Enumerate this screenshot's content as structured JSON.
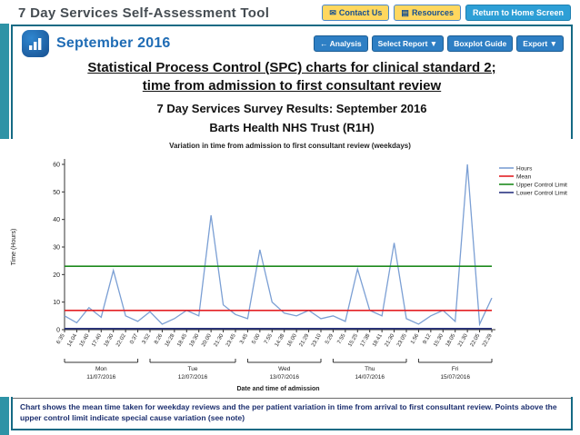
{
  "top_bar": {
    "title": "7 Day Services Self-Assessment Tool",
    "contact_icon": "✉",
    "contact_label": "Contact Us",
    "resources_icon": "▤",
    "resources_label": "Resources",
    "home_label": "Return to Home Screen"
  },
  "panel_header": {
    "month_title": "September 2016",
    "analysis_label": "← Analysis",
    "select_report_label": "Select Report ▼",
    "boxplot_label": "Boxplot Guide",
    "export_label": "Export ▼"
  },
  "titles": {
    "main_line1": "Statistical Process Control (SPC) charts for clinical standard 2;",
    "main_line2": "time from admission to first consultant review",
    "survey": "7 Day Services Survey Results: September 2016",
    "trust": "Barts Health NHS Trust (R1H)"
  },
  "chart_data": {
    "type": "line",
    "title": "Variation in time from admission to first consultant review (weekdays)",
    "ylabel": "Time (Hours)",
    "xlabel": "Date and time of admission",
    "ylim": [
      0,
      60
    ],
    "yticks": [
      0,
      10,
      20,
      30,
      40,
      50,
      60
    ],
    "grid": false,
    "legend_position": "top-right",
    "categories": [
      "6:35",
      "14:04",
      "15:40",
      "17:40",
      "19:30",
      "22:02",
      "0:37",
      "3:52",
      "8:26",
      "16:28",
      "18:45",
      "19:30",
      "20:00",
      "21:30",
      "23:45",
      "3:45",
      "5:00",
      "7:55",
      "14:38",
      "16:00",
      "21:29",
      "23:10",
      "5:29",
      "7:55",
      "15:25",
      "17:38",
      "18:41",
      "21:30",
      "23:05",
      "1:56",
      "9:12",
      "15:30",
      "18:05",
      "21:30",
      "22:05",
      "22:29"
    ],
    "series": [
      {
        "name": "Hours",
        "color": "#7b9fd4",
        "values": [
          5,
          2.5,
          8,
          4.5,
          21.5,
          5,
          3,
          6.5,
          2,
          4,
          7,
          5,
          41.5,
          9,
          5.5,
          4,
          29,
          10,
          6,
          5,
          7,
          4,
          5,
          3,
          22,
          7,
          5,
          31.5,
          4,
          2,
          5,
          7,
          3,
          60,
          2,
          11.5
        ]
      },
      {
        "name": "Mean",
        "color": "#e32024",
        "value": 7
      },
      {
        "name": "Upper Control Limit",
        "color": "#1d8a1d",
        "value": 23
      },
      {
        "name": "Lower Control Limit",
        "color": "#2a3480",
        "value": 0.4
      }
    ],
    "day_groups": [
      {
        "label": "Mon",
        "date": "11/07/2016",
        "from": 0,
        "to": 6
      },
      {
        "label": "Tue",
        "date": "12/07/2016",
        "from": 7,
        "to": 14
      },
      {
        "label": "Wed",
        "date": "13/07/2016",
        "from": 15,
        "to": 21
      },
      {
        "label": "Thu",
        "date": "14/07/2016",
        "from": 22,
        "to": 28
      },
      {
        "label": "Fri",
        "date": "15/07/2016",
        "from": 29,
        "to": 35
      }
    ]
  },
  "footnote": "Chart shows the mean time taken for weekday reviews and the per patient variation in time from arrival to first consultant review. Points above the upper control limit indicate special cause variation (see note)"
}
